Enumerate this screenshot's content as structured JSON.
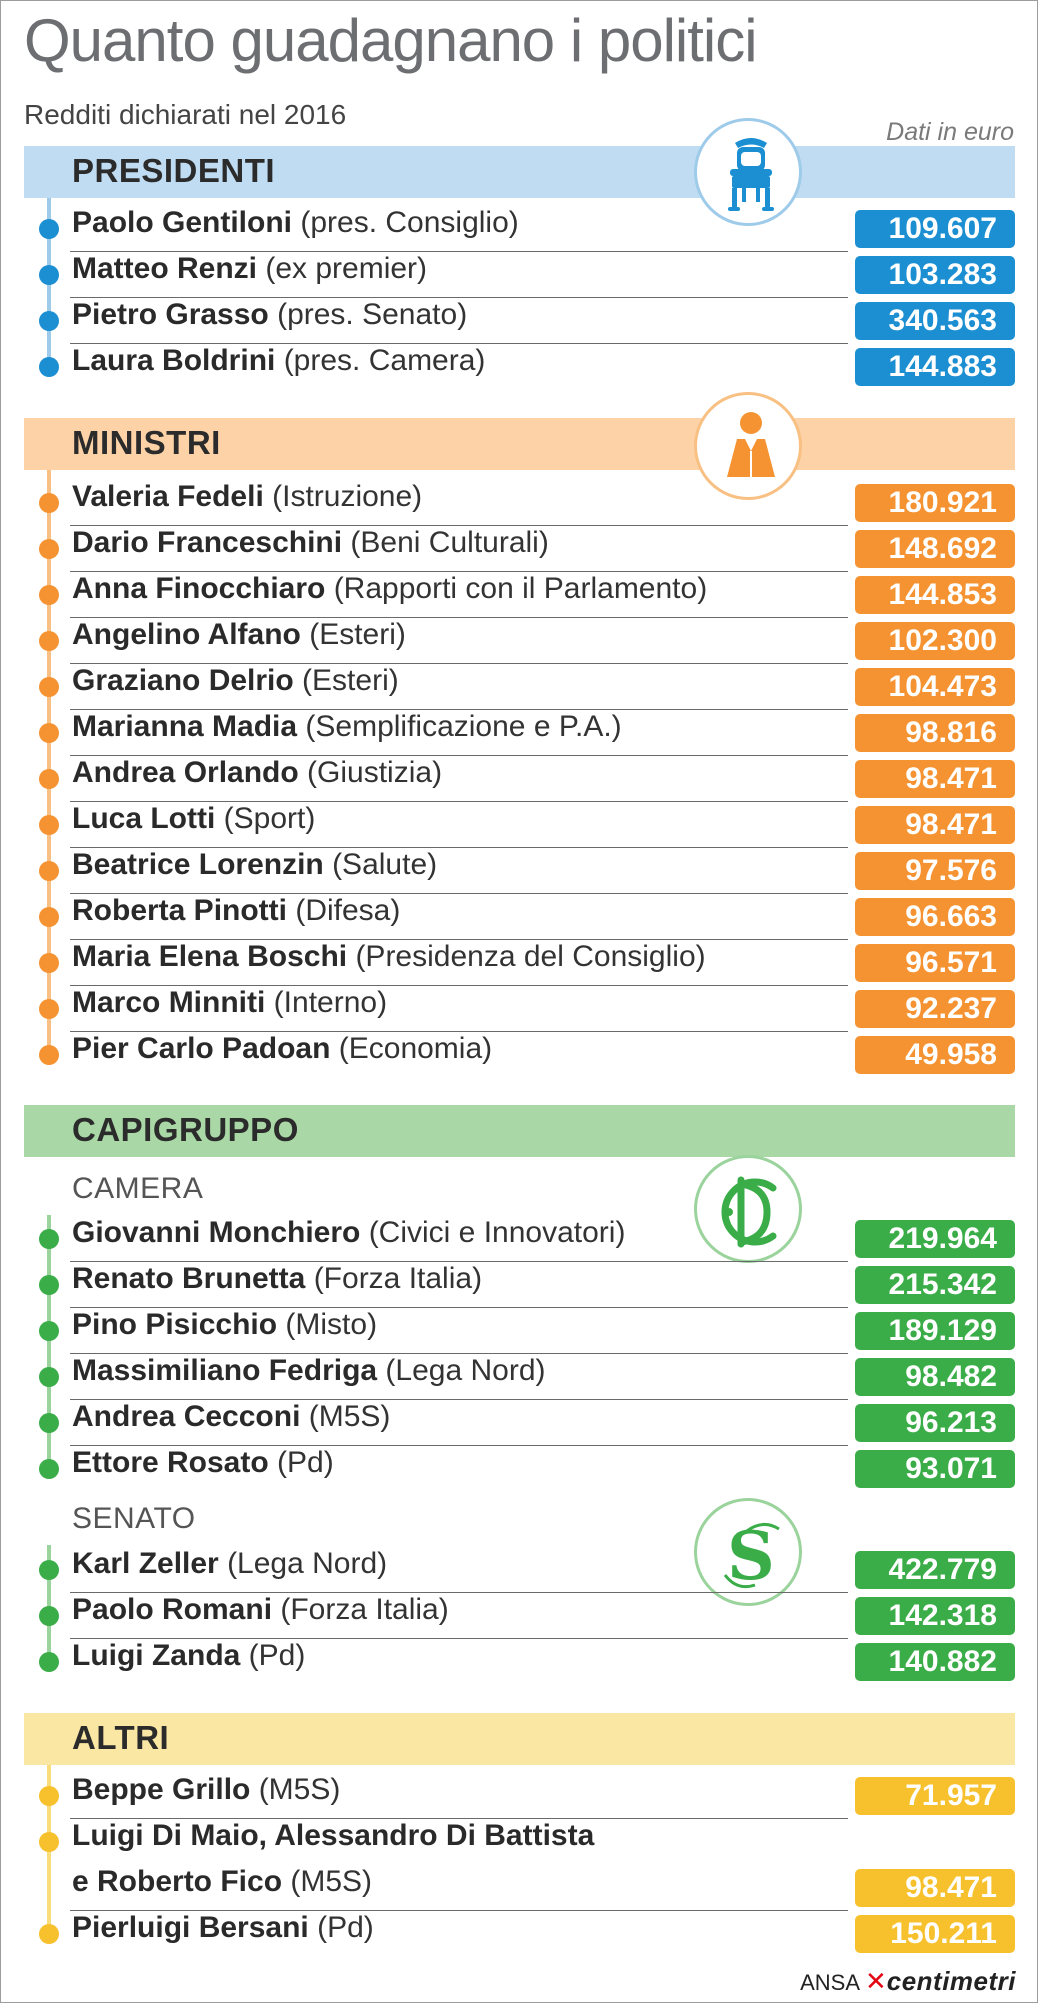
{
  "title": "Quanto guadagnano i politici",
  "subtitle": "Redditi dichiarati nel 2016",
  "unit_note": "Dati in euro",
  "credit": {
    "agency": "ANSA",
    "brand": "centimetri"
  },
  "colors": {
    "presidenti": {
      "band": "#bfdcf2",
      "accent": "#1b8fd2",
      "line": "#9fcbea"
    },
    "ministri": {
      "band": "#fcd2a6",
      "accent": "#f59332",
      "line": "#f9c084"
    },
    "capigruppo": {
      "band": "#a9d7a6",
      "accent": "#3aad48",
      "line": "#9ad39b"
    },
    "altri": {
      "band": "#fbe7a4",
      "accent": "#f7c12e",
      "line": "#f9dd7c"
    }
  },
  "sections": {
    "presidenti": {
      "label": "PRESIDENTI",
      "icon": "throne-chair-icon",
      "rows": [
        {
          "name": "Paolo Gentiloni",
          "role": "(pres. Consiglio)",
          "value": "109.607"
        },
        {
          "name": "Matteo Renzi",
          "role": "(ex premier)",
          "value": "103.283"
        },
        {
          "name": "Pietro Grasso",
          "role": "(pres. Senato)",
          "value": "340.563"
        },
        {
          "name": "Laura Boldrini",
          "role": "(pres. Camera)",
          "value": "144.883"
        }
      ]
    },
    "ministri": {
      "label": "MINISTRI",
      "icon": "minister-figure-icon",
      "rows": [
        {
          "name": "Valeria Fedeli",
          "role": "(Istruzione)",
          "value": "180.921"
        },
        {
          "name": "Dario Franceschini",
          "role": "(Beni Culturali)",
          "value": "148.692"
        },
        {
          "name": "Anna Finocchiaro",
          "role": "(Rapporti con il Parlamento)",
          "value": "144.853"
        },
        {
          "name": "Angelino Alfano",
          "role": "(Esteri)",
          "value": "102.300"
        },
        {
          "name": "Graziano Delrio",
          "role": "(Esteri)",
          "value": "104.473"
        },
        {
          "name": "Marianna Madia",
          "role": "(Semplificazione e P.A.)",
          "value": "98.816"
        },
        {
          "name": "Andrea Orlando",
          "role": "(Giustizia)",
          "value": "98.471"
        },
        {
          "name": "Luca Lotti",
          "role": "(Sport)",
          "value": "98.471"
        },
        {
          "name": "Beatrice Lorenzin",
          "role": "(Salute)",
          "value": "97.576"
        },
        {
          "name": "Roberta Pinotti",
          "role": "(Difesa)",
          "value": "96.663"
        },
        {
          "name": "Maria Elena Boschi",
          "role": "(Presidenza del Consiglio)",
          "value": "96.571"
        },
        {
          "name": "Marco Minniti",
          "role": "(Interno)",
          "value": "92.237"
        },
        {
          "name": "Pier Carlo Padoan",
          "role": "(Economia)",
          "value": "49.958"
        }
      ]
    },
    "capigruppo": {
      "label": "CAPIGRUPPO",
      "camera": {
        "label": "CAMERA",
        "icon": "camera-monogram-icon",
        "rows": [
          {
            "name": "Giovanni Monchiero",
            "role": "(Civici e Innovatori)",
            "value": "219.964"
          },
          {
            "name": "Renato Brunetta",
            "role": "(Forza Italia)",
            "value": "215.342"
          },
          {
            "name": "Pino Pisicchio",
            "role": "(Misto)",
            "value": "189.129"
          },
          {
            "name": "Massimiliano Fedriga",
            "role": "(Lega Nord)",
            "value": "98.482"
          },
          {
            "name": "Andrea Cecconi",
            "role": "(M5S)",
            "value": "96.213"
          },
          {
            "name": "Ettore Rosato",
            "role": "(Pd)",
            "value": "93.071"
          }
        ]
      },
      "senato": {
        "label": "SENATO",
        "icon": "senato-s-monogram-icon",
        "rows": [
          {
            "name": "Karl Zeller",
            "role": "(Lega Nord)",
            "value": "422.779"
          },
          {
            "name": "Paolo Romani",
            "role": "(Forza Italia)",
            "value": "142.318"
          },
          {
            "name": "Luigi Zanda",
            "role": "(Pd)",
            "value": "140.882"
          }
        ]
      }
    },
    "altri": {
      "label": "ALTRI",
      "rows": [
        {
          "name": "Beppe Grillo",
          "role": "(M5S)",
          "value": "71.957"
        },
        {
          "name_line1": "Luigi Di Maio, Alessandro Di Battista",
          "name": "e Roberto Fico",
          "role": "(M5S)",
          "value": "98.471"
        },
        {
          "name": "Pierluigi Bersani",
          "role": "(Pd)",
          "value": "150.211"
        }
      ]
    }
  },
  "chart_data": {
    "type": "table",
    "title": "Quanto guadagnano i politici",
    "subtitle": "Redditi dichiarati nel 2016",
    "unit": "Dati in euro",
    "groups": [
      {
        "group": "PRESIDENTI",
        "items": [
          {
            "name": "Paolo Gentiloni",
            "role": "pres. Consiglio",
            "value": 109607
          },
          {
            "name": "Matteo Renzi",
            "role": "ex premier",
            "value": 103283
          },
          {
            "name": "Pietro Grasso",
            "role": "pres. Senato",
            "value": 340563
          },
          {
            "name": "Laura Boldrini",
            "role": "pres. Camera",
            "value": 144883
          }
        ]
      },
      {
        "group": "MINISTRI",
        "items": [
          {
            "name": "Valeria Fedeli",
            "role": "Istruzione",
            "value": 180921
          },
          {
            "name": "Dario Franceschini",
            "role": "Beni Culturali",
            "value": 148692
          },
          {
            "name": "Anna Finocchiaro",
            "role": "Rapporti con il Parlamento",
            "value": 144853
          },
          {
            "name": "Angelino Alfano",
            "role": "Esteri",
            "value": 102300
          },
          {
            "name": "Graziano Delrio",
            "role": "Esteri",
            "value": 104473
          },
          {
            "name": "Marianna Madia",
            "role": "Semplificazione e P.A.",
            "value": 98816
          },
          {
            "name": "Andrea Orlando",
            "role": "Giustizia",
            "value": 98471
          },
          {
            "name": "Luca Lotti",
            "role": "Sport",
            "value": 98471
          },
          {
            "name": "Beatrice Lorenzin",
            "role": "Salute",
            "value": 97576
          },
          {
            "name": "Roberta Pinotti",
            "role": "Difesa",
            "value": 96663
          },
          {
            "name": "Maria Elena Boschi",
            "role": "Presidenza del Consiglio",
            "value": 96571
          },
          {
            "name": "Marco Minniti",
            "role": "Interno",
            "value": 92237
          },
          {
            "name": "Pier Carlo Padoan",
            "role": "Economia",
            "value": 49958
          }
        ]
      },
      {
        "group": "CAPIGRUPPO - CAMERA",
        "items": [
          {
            "name": "Giovanni Monchiero",
            "role": "Civici e Innovatori",
            "value": 219964
          },
          {
            "name": "Renato Brunetta",
            "role": "Forza Italia",
            "value": 215342
          },
          {
            "name": "Pino Pisicchio",
            "role": "Misto",
            "value": 189129
          },
          {
            "name": "Massimiliano Fedriga",
            "role": "Lega Nord",
            "value": 98482
          },
          {
            "name": "Andrea Cecconi",
            "role": "M5S",
            "value": 96213
          },
          {
            "name": "Ettore Rosato",
            "role": "Pd",
            "value": 93071
          }
        ]
      },
      {
        "group": "CAPIGRUPPO - SENATO",
        "items": [
          {
            "name": "Karl Zeller",
            "role": "Lega Nord",
            "value": 422779
          },
          {
            "name": "Paolo Romani",
            "role": "Forza Italia",
            "value": 142318
          },
          {
            "name": "Luigi Zanda",
            "role": "Pd",
            "value": 140882
          }
        ]
      },
      {
        "group": "ALTRI",
        "items": [
          {
            "name": "Beppe Grillo",
            "role": "M5S",
            "value": 71957
          },
          {
            "name": "Luigi Di Maio, Alessandro Di Battista e Roberto Fico",
            "role": "M5S",
            "value": 98471
          },
          {
            "name": "Pierluigi Bersani",
            "role": "Pd",
            "value": 150211
          }
        ]
      }
    ]
  }
}
